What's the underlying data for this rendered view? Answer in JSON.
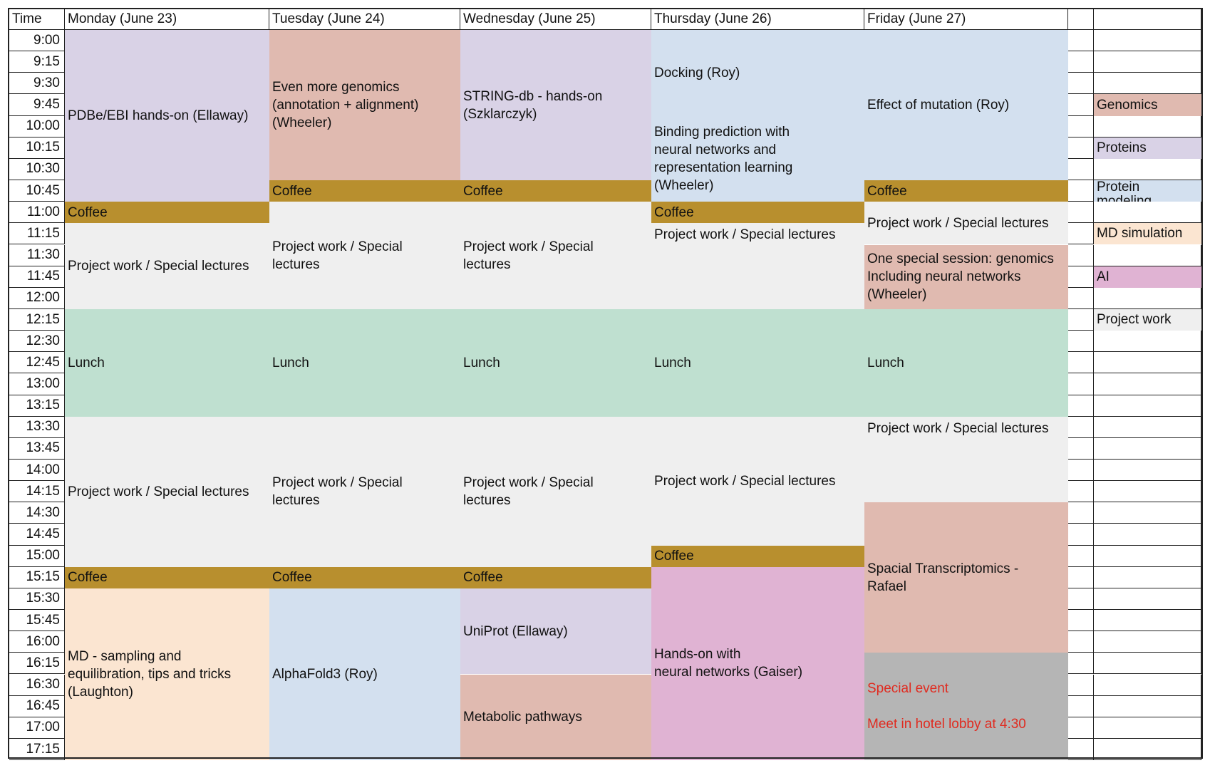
{
  "colors": {
    "genomics": "#e0bab0",
    "proteins": "#d9d2e6",
    "protein_modeling": "#d3e0ef",
    "md_simulation": "#fbe5d1",
    "ai": "#e0b3d3",
    "project_work": "#efefef",
    "lunch": "#bfe0d0",
    "coffee": "#b88f2e",
    "special_event": "#b5b5b5",
    "special_text": "#e02b20"
  },
  "header": {
    "time": "Time",
    "days": [
      "Monday (June 23)",
      "Tuesday (June 24)",
      "Wednesday (June 25)",
      "Thursday (June 26)",
      "Friday (June 27)"
    ]
  },
  "times": [
    "9:00",
    "9:15",
    "9:30",
    "9:45",
    "10:00",
    "10:15",
    "10:30",
    "10:45",
    "11:00",
    "11:15",
    "11:30",
    "11:45",
    "12:00",
    "12:15",
    "12:30",
    "12:45",
    "13:00",
    "13:15",
    "13:30",
    "13:45",
    "14:00",
    "14:15",
    "14:30",
    "14:45",
    "15:00",
    "15:15",
    "15:30",
    "15:45",
    "16:00",
    "16:15",
    "16:30",
    "16:45",
    "17:00",
    "17:15"
  ],
  "events": [
    {
      "day": 0,
      "start": 0,
      "end": 8,
      "type": "proteins",
      "label": "PDBe/EBI hands-on (Ellaway)"
    },
    {
      "day": 0,
      "start": 8,
      "end": 9,
      "type": "coffee",
      "label": "Coffee"
    },
    {
      "day": 0,
      "start": 9,
      "end": 13,
      "type": "project_work",
      "label": "Project work / Special lectures"
    },
    {
      "day": 0,
      "start": 13,
      "end": 18,
      "type": "lunch",
      "label": "Lunch"
    },
    {
      "day": 0,
      "start": 18,
      "end": 25,
      "type": "project_work",
      "label": "Project work / Special lectures"
    },
    {
      "day": 0,
      "start": 25,
      "end": 26,
      "type": "coffee",
      "label": "Coffee"
    },
    {
      "day": 0,
      "start": 26,
      "end": 34,
      "type": "md_simulation",
      "label": "MD - sampling and\nequilibration, tips and tricks\n(Laughton)"
    },
    {
      "day": 1,
      "start": 0,
      "end": 7,
      "type": "genomics",
      "label": "Even more genomics\n(annotation + alignment)\n(Wheeler)"
    },
    {
      "day": 1,
      "start": 7,
      "end": 8,
      "type": "coffee",
      "label": "Coffee"
    },
    {
      "day": 1,
      "start": 8,
      "end": 13,
      "type": "project_work",
      "label": "Project work / Special\nlectures"
    },
    {
      "day": 1,
      "start": 13,
      "end": 18,
      "type": "lunch",
      "label": "Lunch"
    },
    {
      "day": 1,
      "start": 18,
      "end": 25,
      "type": "project_work",
      "label": "Project work / Special\nlectures"
    },
    {
      "day": 1,
      "start": 25,
      "end": 26,
      "type": "coffee",
      "label": "Coffee"
    },
    {
      "day": 1,
      "start": 26,
      "end": 34,
      "type": "protein_modeling",
      "label": "AlphaFold3 (Roy)"
    },
    {
      "day": 2,
      "start": 0,
      "end": 7,
      "type": "proteins",
      "label": "STRING-db - hands-on\n(Szklarczyk)"
    },
    {
      "day": 2,
      "start": 7,
      "end": 8,
      "type": "coffee",
      "label": "Coffee"
    },
    {
      "day": 2,
      "start": 8,
      "end": 13,
      "type": "project_work",
      "label": "Project work / Special\nlectures"
    },
    {
      "day": 2,
      "start": 13,
      "end": 18,
      "type": "lunch",
      "label": "Lunch"
    },
    {
      "day": 2,
      "start": 18,
      "end": 25,
      "type": "project_work",
      "label": "Project work / Special\nlectures"
    },
    {
      "day": 2,
      "start": 25,
      "end": 26,
      "type": "coffee",
      "label": "Coffee"
    },
    {
      "day": 2,
      "start": 26,
      "end": 30,
      "type": "proteins",
      "label": "UniProt (Ellaway)"
    },
    {
      "day": 2,
      "start": 30,
      "end": 34,
      "type": "genomics",
      "label": "Metabolic pathways"
    },
    {
      "day": 3,
      "start": 0,
      "end": 4,
      "type": "protein_modeling",
      "label": "Docking (Roy)"
    },
    {
      "day": 3,
      "start": 4,
      "end": 8,
      "type": "protein_modeling",
      "label": "Binding prediction with\nneural networks and\nrepresentation learning\n(Wheeler)"
    },
    {
      "day": 3,
      "start": 8,
      "end": 9,
      "type": "coffee",
      "label": "Coffee"
    },
    {
      "day": 3,
      "start": 9,
      "end": 13,
      "type": "project_work",
      "label": "Project work / Special lectures",
      "align": "top"
    },
    {
      "day": 3,
      "start": 13,
      "end": 18,
      "type": "lunch",
      "label": "Lunch"
    },
    {
      "day": 3,
      "start": 18,
      "end": 24,
      "type": "project_work",
      "label": "Project work / Special lectures"
    },
    {
      "day": 3,
      "start": 24,
      "end": 25,
      "type": "coffee",
      "label": "Coffee"
    },
    {
      "day": 3,
      "start": 25,
      "end": 34,
      "type": "ai",
      "label": "Hands-on with\n neural networks (Gaiser)"
    },
    {
      "day": 4,
      "start": 0,
      "end": 7,
      "type": "protein_modeling",
      "label": "Effect of mutation (Roy)"
    },
    {
      "day": 4,
      "start": 7,
      "end": 8,
      "type": "coffee",
      "label": "Coffee"
    },
    {
      "day": 4,
      "start": 8,
      "end": 10,
      "type": "project_work",
      "label": "Project work / Special lectures"
    },
    {
      "day": 4,
      "start": 10,
      "end": 13,
      "type": "genomics",
      "label": "One special session: genomics\nIncluding neural networks\n(Wheeler)"
    },
    {
      "day": 4,
      "start": 13,
      "end": 18,
      "type": "lunch",
      "label": "Lunch"
    },
    {
      "day": 4,
      "start": 18,
      "end": 22,
      "type": "project_work",
      "label": "Project work / Special lectures",
      "align": "top"
    },
    {
      "day": 4,
      "start": 22,
      "end": 29,
      "type": "genomics",
      "label": "Spacial Transcriptomics -\nRafael"
    },
    {
      "day": 4,
      "start": 29,
      "end": 34,
      "type": "special_event",
      "label": "Special event\n\nMeet in hotel lobby at 4:30",
      "red": true
    }
  ],
  "legend": [
    {
      "row": 3,
      "type": "genomics",
      "label": "Genomics"
    },
    {
      "row": 5,
      "type": "proteins",
      "label": "Proteins"
    },
    {
      "row": 7,
      "type": "protein_modeling",
      "label": "Protein\nmodeling"
    },
    {
      "row": 9,
      "type": "md_simulation",
      "label": "MD simulation"
    },
    {
      "row": 11,
      "type": "ai",
      "label": "AI"
    },
    {
      "row": 13,
      "type": "project_work",
      "label": "Project work"
    }
  ]
}
